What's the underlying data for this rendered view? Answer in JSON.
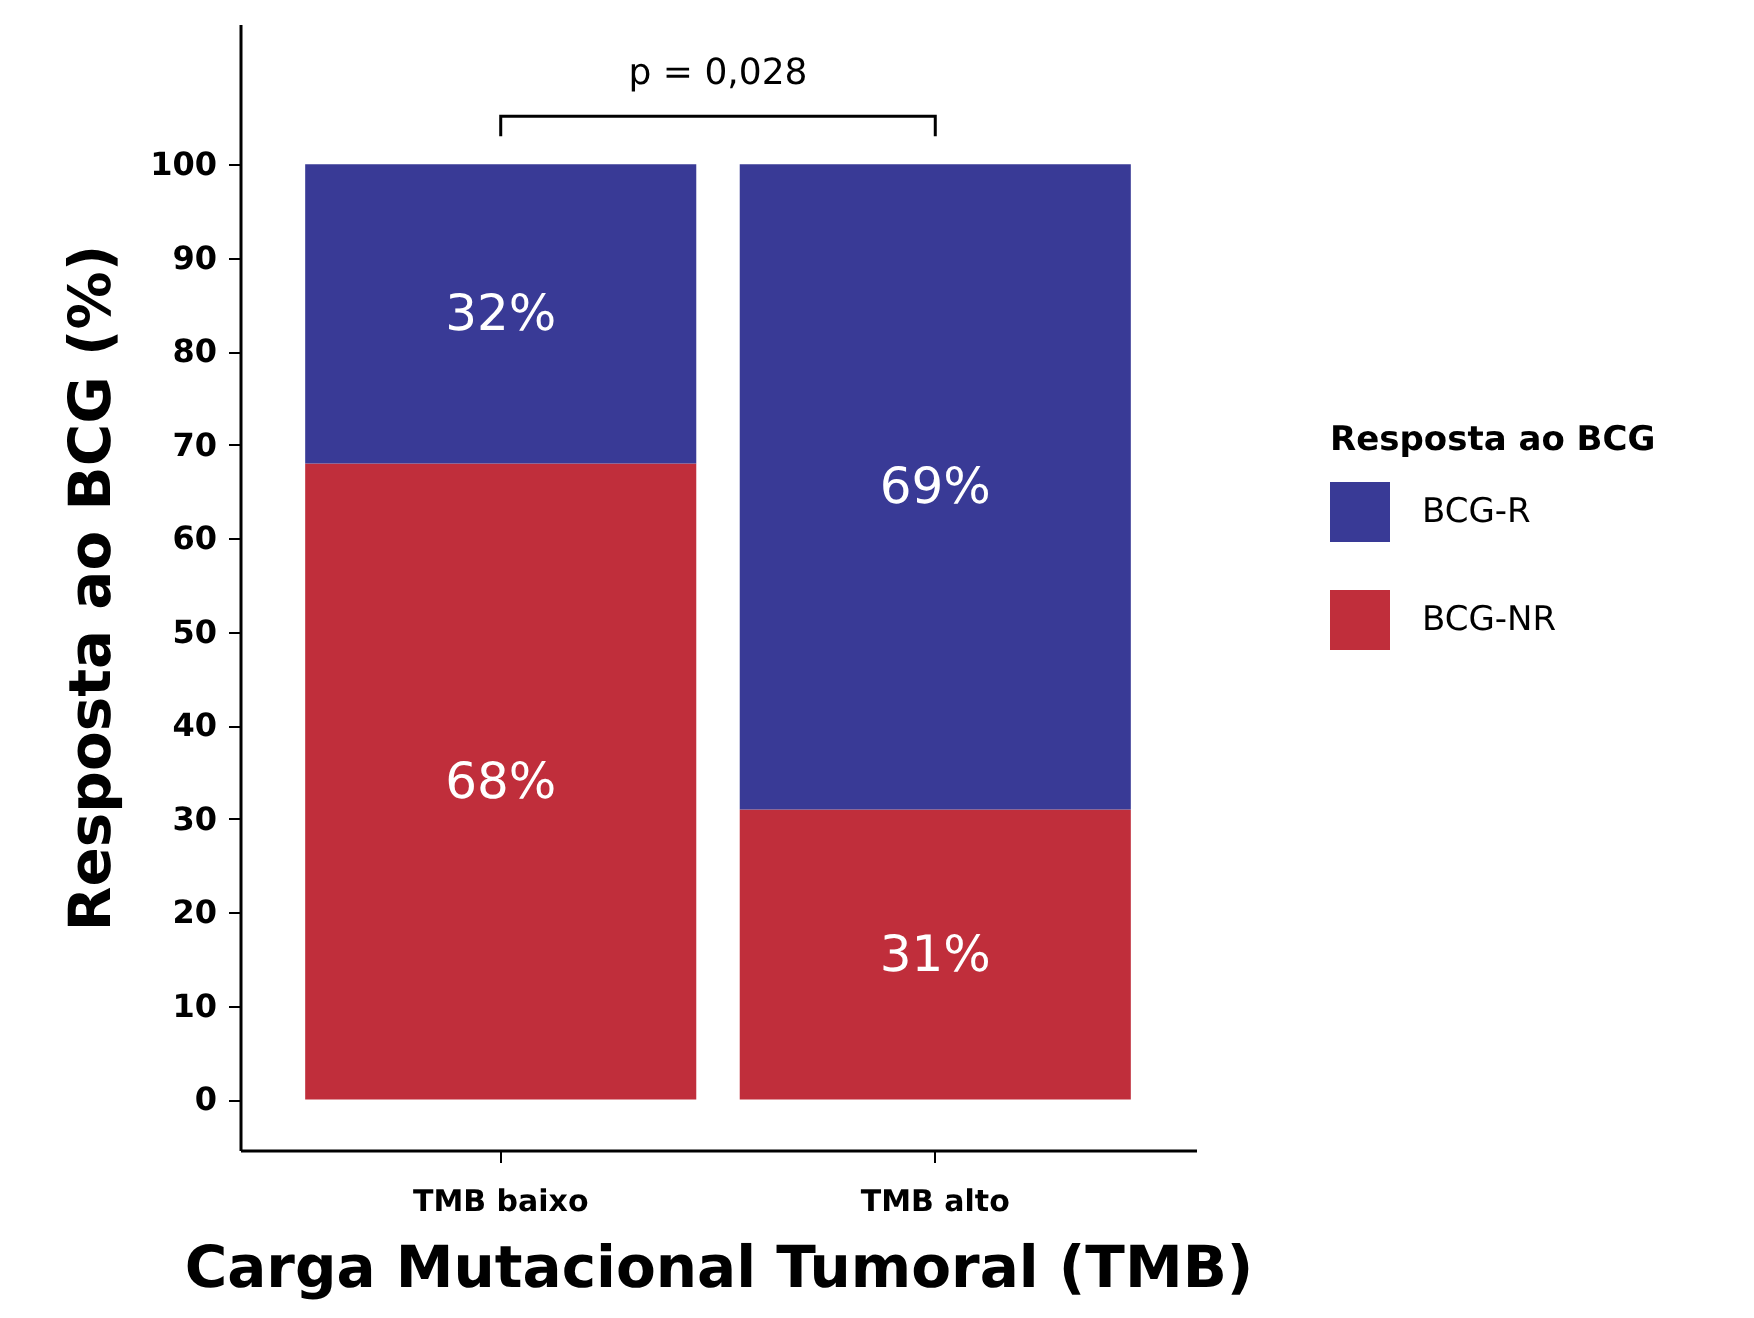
{
  "chart_data": {
    "type": "bar",
    "stacked": true,
    "xlabel": "Carga Mutacional Tumoral (TMB)",
    "ylabel": "Resposta ao BCG (%)",
    "legend_title": "Resposta ao BCG",
    "legend": "right",
    "categories": [
      "TMB baixo",
      "TMB alto"
    ],
    "series": [
      {
        "name": "BCG-NR",
        "color": "#c02e3b",
        "values": [
          68,
          31
        ],
        "value_labels": [
          "68%",
          "31%"
        ]
      },
      {
        "name": "BCG-R",
        "color": "#393a96",
        "values": [
          32,
          69
        ],
        "value_labels": [
          "32%",
          "69%"
        ]
      }
    ],
    "ylim": [
      -5.4,
      115
    ],
    "yticks": [
      0,
      10,
      20,
      30,
      40,
      50,
      60,
      70,
      80,
      90,
      100
    ],
    "annotations": [
      "p = 0,028"
    ]
  }
}
